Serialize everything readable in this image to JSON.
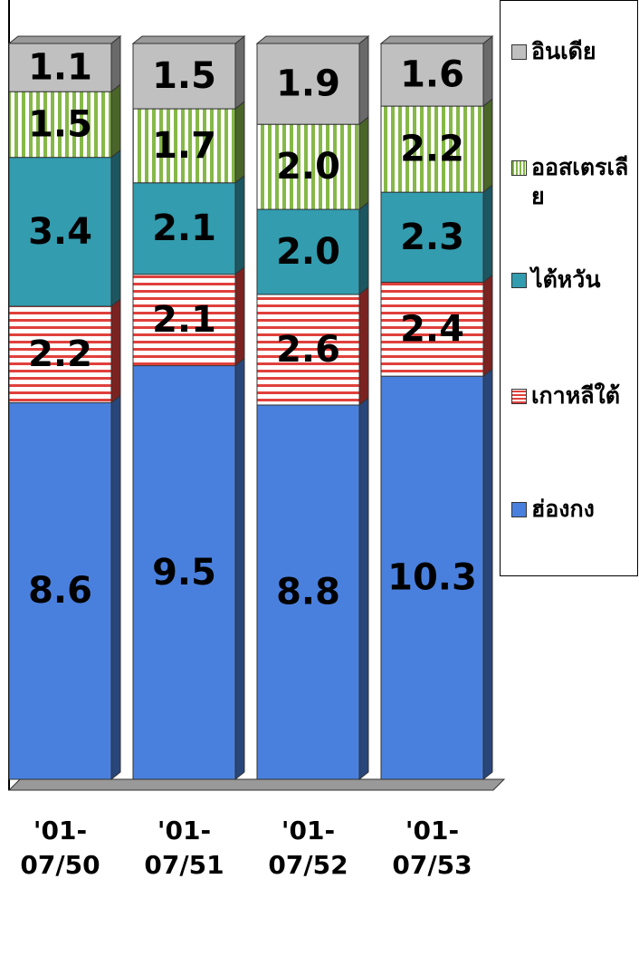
{
  "chart_data": {
    "type": "bar",
    "stacking": "percent",
    "categories": [
      "'01- 07/50",
      "'01- 07/51",
      "'01- 07/52",
      "'01- 07/53"
    ],
    "series": [
      {
        "name": "ฮ่องกง",
        "color": "#4a80dd",
        "pattern": "solid",
        "values": [
          8.6,
          9.5,
          8.8,
          10.3
        ],
        "value_labels": [
          "8.6",
          "9.5",
          "8.8",
          "10.3"
        ]
      },
      {
        "name": "เกาหลีใต้",
        "color": "#e0403c",
        "pattern": "horizontal-stripes",
        "values": [
          2.2,
          2.1,
          2.6,
          2.4
        ],
        "value_labels": [
          "2.2",
          "2.1",
          "2.6",
          "2.4"
        ]
      },
      {
        "name": "ไต้หวัน",
        "color": "#339caf",
        "pattern": "solid",
        "values": [
          3.4,
          2.1,
          2.0,
          2.3
        ],
        "value_labels": [
          "3.4",
          "2.1",
          "2.0",
          "2.3"
        ]
      },
      {
        "name": "ออสเตรเลีย",
        "color": "#86b848",
        "pattern": "vertical-stripes",
        "values": [
          1.5,
          1.7,
          2.0,
          2.2
        ],
        "value_labels": [
          "1.5",
          "1.7",
          "2.0",
          "2.2"
        ]
      },
      {
        "name": "อินเดีย",
        "color": "#c0c0c0",
        "pattern": "solid",
        "values": [
          1.1,
          1.5,
          1.9,
          1.6
        ],
        "value_labels": [
          "1.1",
          "1.5",
          "1.9",
          "1.6"
        ]
      }
    ],
    "legend": "right"
  }
}
